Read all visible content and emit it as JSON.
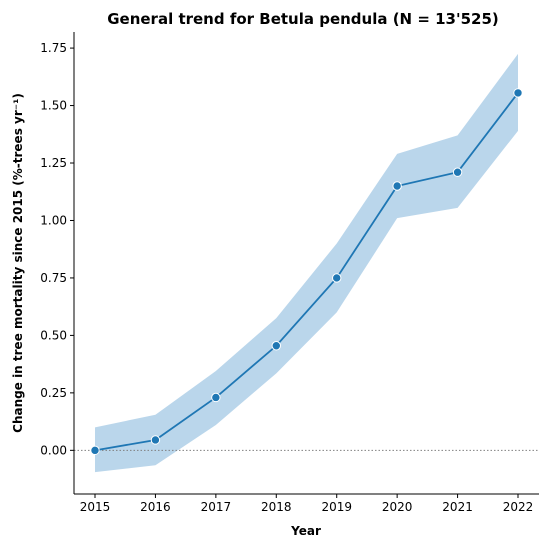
{
  "chart_data": {
    "type": "line",
    "title": "General trend for Betula pendula  (N = 13'525)",
    "xlabel": "Year",
    "ylabel": "Change in tree mortality since 2015 (%-trees yr⁻¹)",
    "x": [
      2015,
      2016,
      2017,
      2018,
      2019,
      2020,
      2021,
      2022
    ],
    "xticks": [
      "2015",
      "2016",
      "2017",
      "2018",
      "2019",
      "2020",
      "2021",
      "2022"
    ],
    "yticks": [
      "0.00",
      "0.25",
      "0.50",
      "0.75",
      "1.00",
      "1.25",
      "1.50",
      "1.75"
    ],
    "ylim": [
      -0.19,
      1.82
    ],
    "series": [
      {
        "values": [
          0.0,
          0.045,
          0.23,
          0.455,
          0.75,
          1.15,
          1.21,
          1.555
        ],
        "lower": [
          -0.095,
          -0.065,
          0.11,
          0.335,
          0.6,
          1.01,
          1.055,
          1.39
        ],
        "upper": [
          0.1,
          0.155,
          0.345,
          0.575,
          0.9,
          1.29,
          1.37,
          1.725
        ]
      }
    ],
    "reference_line": 0,
    "grid": false,
    "colors": {
      "line": "#1f77b4",
      "band": "#bad6eb",
      "reference": "#808080"
    }
  }
}
